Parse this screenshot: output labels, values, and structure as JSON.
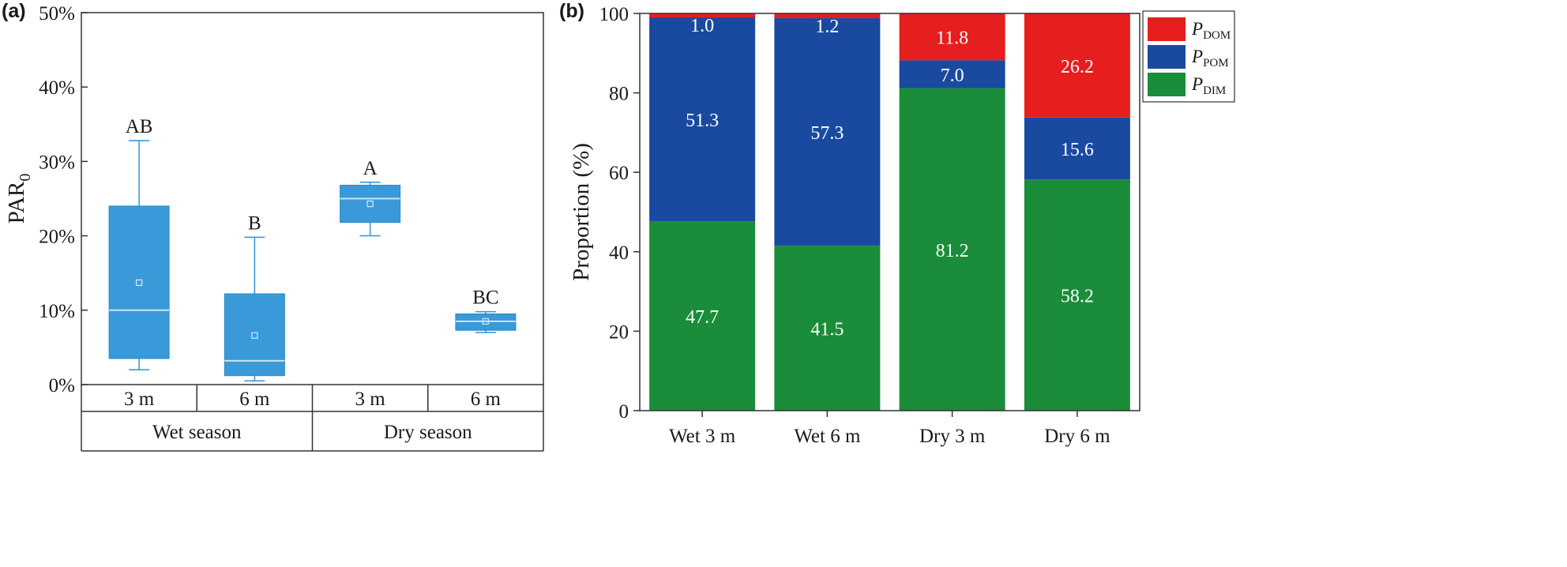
{
  "chart_data": [
    {
      "panel": "(a)",
      "type": "box",
      "ylabel": "PAR",
      "ylabel_sub": "0",
      "ylim": [
        0,
        50
      ],
      "yticks": [
        "0%",
        "10%",
        "20%",
        "30%",
        "40%",
        "50%"
      ],
      "box_color": "#3a9ad9",
      "median_color": "#c8e4f7",
      "groups": [
        {
          "season": "Wet season",
          "depths": [
            "3 m",
            "6 m"
          ]
        },
        {
          "season": "Dry season",
          "depths": [
            "3 m",
            "6 m"
          ]
        }
      ],
      "boxes": [
        {
          "category": "Wet season 3 m",
          "whisker_low": 2.0,
          "q1": 3.5,
          "median": 10.0,
          "q3": 24.0,
          "whisker_high": 32.8,
          "mean": 13.7,
          "letter": "AB"
        },
        {
          "category": "Wet season 6 m",
          "whisker_low": 0.5,
          "q1": 1.2,
          "median": 3.2,
          "q3": 12.2,
          "whisker_high": 19.8,
          "mean": 6.6,
          "letter": "B"
        },
        {
          "category": "Dry season 3 m",
          "whisker_low": 20.0,
          "q1": 21.8,
          "median": 25.0,
          "q3": 26.8,
          "whisker_high": 27.2,
          "mean": 24.3,
          "letter": "A"
        },
        {
          "category": "Dry season 6 m",
          "whisker_low": 7.0,
          "q1": 7.3,
          "median": 8.5,
          "q3": 9.5,
          "whisker_high": 9.8,
          "mean": 8.5,
          "letter": "BC"
        }
      ]
    },
    {
      "panel": "(b)",
      "type": "bar",
      "stacked": true,
      "ylabel": "Proportion (%)",
      "ylim": [
        0,
        100
      ],
      "yticks": [
        "0",
        "20",
        "40",
        "60",
        "80",
        "100"
      ],
      "categories": [
        "Wet 3 m",
        "Wet 6 m",
        "Dry 3 m",
        "Dry 6 m"
      ],
      "series": [
        {
          "name": "P",
          "sub": "DIM",
          "color": "#1a8c3a",
          "values": [
            47.7,
            41.5,
            81.2,
            58.2
          ]
        },
        {
          "name": "P",
          "sub": "POM",
          "color": "#1a4aa0",
          "values": [
            51.3,
            57.3,
            7.0,
            15.6
          ]
        },
        {
          "name": "P",
          "sub": "DOM",
          "color": "#e61e1e",
          "values": [
            1.0,
            1.2,
            11.8,
            26.2
          ]
        }
      ],
      "value_labels": [
        [
          "47.7",
          "51.3",
          "1.0"
        ],
        [
          "41.5",
          "57.3",
          "1.2"
        ],
        [
          "81.2",
          "7.0",
          "11.8"
        ],
        [
          "58.2",
          "15.6",
          "26.2"
        ]
      ],
      "legend_order": [
        "DOM",
        "POM",
        "DIM"
      ],
      "legend_position": "top-right"
    }
  ]
}
